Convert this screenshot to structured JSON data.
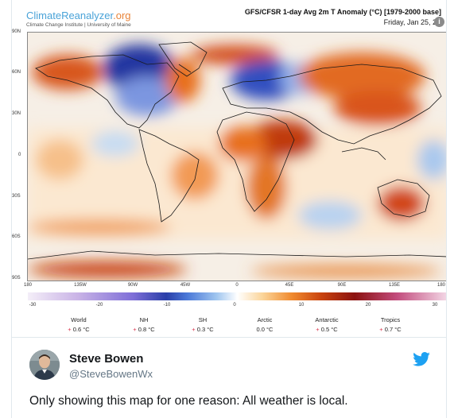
{
  "header": {
    "logo_main": "ClimateReanalyzer",
    "logo_tld": ".org",
    "logo_sub": "Climate Change Institute | University of Maine",
    "title": "GFS/CFSR 1-day Avg 2m T Anomaly (°C) [1979-2000 base]",
    "date": "Friday, Jan 25, 2"
  },
  "map": {
    "lat_labels": [
      "90N",
      "60N",
      "30N",
      "0",
      "30S",
      "60S",
      "90S"
    ],
    "lon_labels": [
      "180",
      "135W",
      "90W",
      "45W",
      "0",
      "45E",
      "90E",
      "135E",
      "180"
    ]
  },
  "colorbar": {
    "ticks": [
      "-30",
      "-20",
      "-10",
      "0",
      "10",
      "20",
      "30"
    ]
  },
  "stats": [
    {
      "label": "World",
      "sign": "+",
      "value": "0.6 °C"
    },
    {
      "label": "NH",
      "sign": "+",
      "value": "0.8 °C"
    },
    {
      "label": "SH",
      "sign": "+",
      "value": "0.3 °C"
    },
    {
      "label": "Arctic",
      "sign": "",
      "value": "0.0 °C"
    },
    {
      "label": "Antarctic",
      "sign": "+",
      "value": "0.5 °C"
    },
    {
      "label": "Tropics",
      "sign": "+",
      "value": "0.7 °C"
    }
  ],
  "tweet": {
    "author_name": "Steve Bowen",
    "author_handle": "@SteveBowenWx",
    "text": "Only showing this map for one reason: All weather is local."
  },
  "icons": {
    "info": "info-icon",
    "twitter": "twitter-bird-icon"
  },
  "colors": {
    "twitter_blue": "#1da1f2",
    "logo_blue": "#4aa3d8",
    "logo_orange": "#e8843a",
    "warm_anomaly": "#e8701e",
    "cold_anomaly": "#2236a0"
  }
}
